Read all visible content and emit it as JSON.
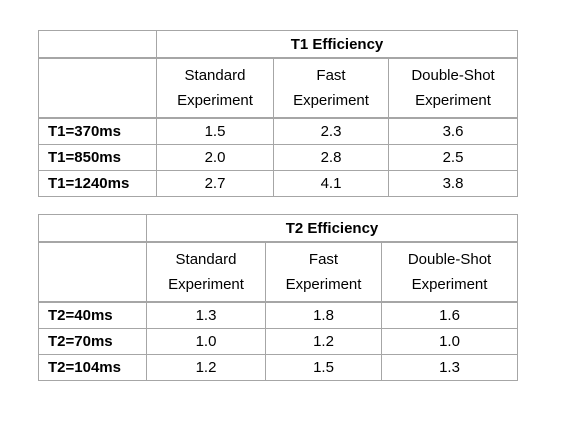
{
  "tables": [
    {
      "title": "T1 Efficiency",
      "columns": [
        "Standard Experiment",
        "Fast Experiment",
        "Double-Shot Experiment"
      ],
      "rows": [
        [
          "T1=370ms",
          "1.5",
          "2.3",
          "3.6"
        ],
        [
          "T1=850ms",
          "2.0",
          "2.8",
          "2.5"
        ],
        [
          "T1=1240ms",
          "2.7",
          "4.1",
          "3.8"
        ]
      ]
    },
    {
      "title": "T2 Efficiency",
      "columns": [
        "Standard Experiment",
        "Fast Experiment",
        "Double-Shot Experiment"
      ],
      "rows": [
        [
          "T2=40ms",
          "1.3",
          "1.8",
          "1.6"
        ],
        [
          "T2=70ms",
          "1.0",
          "1.2",
          "1.0"
        ],
        [
          "T2=104ms",
          "1.2",
          "1.5",
          "1.3"
        ]
      ]
    }
  ]
}
